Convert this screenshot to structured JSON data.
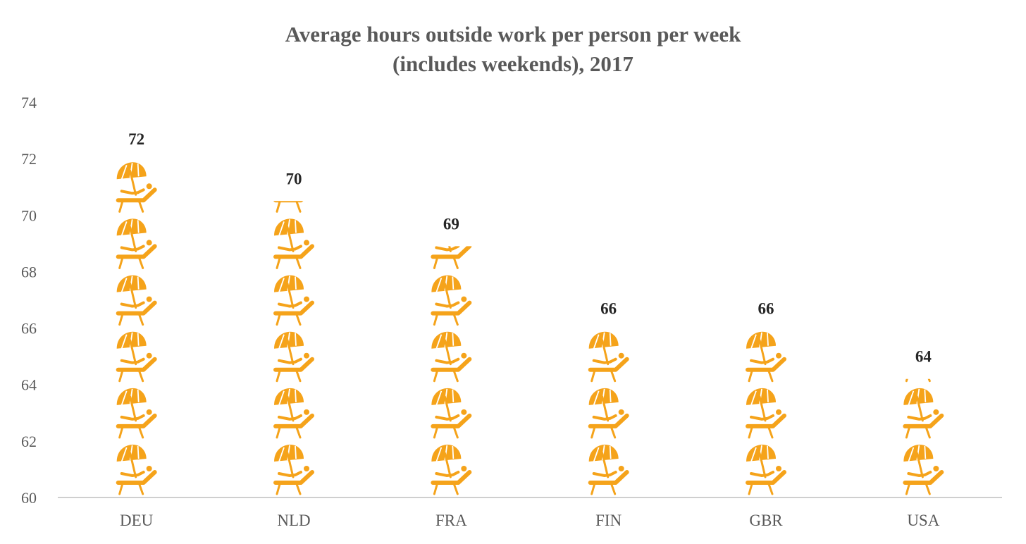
{
  "chart_data": {
    "type": "bar",
    "style": "pictograph",
    "icon": "beach-umbrella-lounger-icon",
    "title_lines": [
      "Average hours outside work per person per week",
      "(includes weekends), 2017"
    ],
    "categories": [
      "DEU",
      "NLD",
      "FRA",
      "FIN",
      "GBR",
      "USA"
    ],
    "values": [
      72,
      70,
      69,
      66,
      66,
      64
    ],
    "values_precise": [
      71.9,
      70.5,
      68.9,
      65.9,
      65.9,
      64.2
    ],
    "xlabel": "",
    "ylabel": "",
    "ylim": [
      60,
      74
    ],
    "yticks": [
      60,
      62,
      64,
      66,
      68,
      70,
      72,
      74
    ],
    "icon_unit": 2,
    "grid": false,
    "legend": "none",
    "colors": {
      "icon": "#F5A31A",
      "text": "#595959",
      "labels": "#262626",
      "axis": "#BFBFBF"
    }
  }
}
